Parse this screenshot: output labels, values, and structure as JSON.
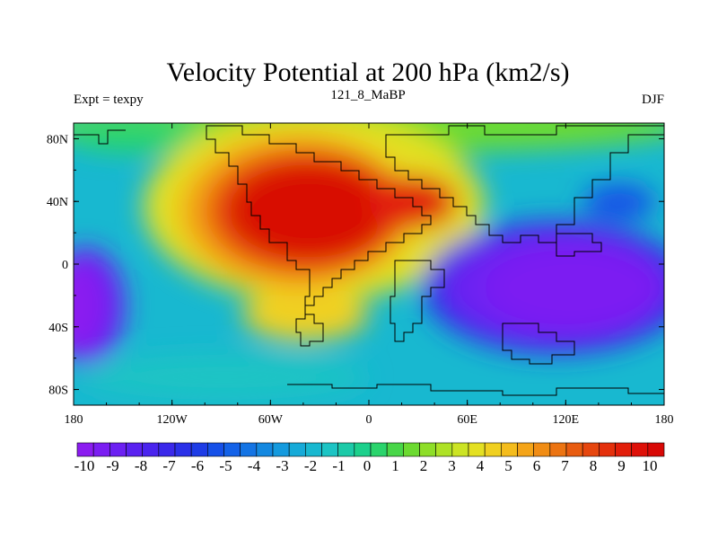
{
  "chart_data": {
    "type": "heatmap",
    "title": "Velocity Potential at 200 hPa (km2/s)",
    "subtitle_left": "Expt = texpy",
    "subtitle_center": "121_8_MaBP",
    "subtitle_right": "DJF",
    "x_ticks": [
      "180",
      "120W",
      "60W",
      "0",
      "60E",
      "120E",
      "180"
    ],
    "x_tick_values": [
      -180,
      -120,
      -60,
      0,
      60,
      120,
      180
    ],
    "y_ticks": [
      "80N",
      "40N",
      "0",
      "40S",
      "80S"
    ],
    "y_tick_values": [
      80,
      40,
      0,
      -40,
      -80
    ],
    "xlim": [
      -180,
      180
    ],
    "ylim": [
      -90,
      90
    ],
    "colorbar": {
      "labels": [
        "-10",
        "-9",
        "-8",
        "-7",
        "-6",
        "-5",
        "-4",
        "-3",
        "-2",
        "-1",
        "0",
        "1",
        "2",
        "3",
        "4",
        "5",
        "6",
        "7",
        "8",
        "9",
        "10"
      ],
      "levels": [
        -10,
        -9.5,
        -9,
        -8.5,
        -8,
        -7.5,
        -7,
        -6.5,
        -6,
        -5.5,
        -5,
        -4.5,
        -4,
        -3.5,
        -3,
        -2.5,
        -2,
        -1.5,
        -1,
        -0.5,
        0,
        0.5,
        1,
        1.5,
        2,
        2.5,
        3,
        3.5,
        4,
        4.5,
        5,
        5.5,
        6,
        6.5,
        7,
        7.5,
        8,
        8.5,
        9,
        9.5,
        10
      ],
      "colors": [
        "#8b1cf0",
        "#7b1ef2",
        "#6c20f2",
        "#5a22f0",
        "#4a24ee",
        "#3a28ea",
        "#2a30e8",
        "#1e3ce6",
        "#1650e8",
        "#1462e8",
        "#1474e4",
        "#1488e0",
        "#149ade",
        "#16aad8",
        "#18b8d0",
        "#1cc4c4",
        "#1ccaa8",
        "#1cd08c",
        "#2ad46c",
        "#48d648",
        "#6cda30",
        "#8ede28",
        "#aee226",
        "#cce424",
        "#e4e022",
        "#f0d020",
        "#f4bc1c",
        "#f4a418",
        "#f08c14",
        "#ec7412",
        "#e85c10",
        "#e6460e",
        "#e4300c",
        "#e21e0a",
        "#de1008",
        "#d80806"
      ]
    },
    "centers": [
      {
        "name": "divergence-center-americas-atlantic",
        "lon": -45,
        "lat": 25,
        "value": 10
      },
      {
        "name": "convergence-center-indo-pacific",
        "lon": 130,
        "lat": -15,
        "value": -10
      },
      {
        "name": "convergence-center-east-pacific",
        "lon": -165,
        "lat": -30,
        "value": -10
      },
      {
        "name": "convergence-center-north-pacific",
        "lon": 150,
        "lat": 35,
        "value": -9
      }
    ]
  }
}
